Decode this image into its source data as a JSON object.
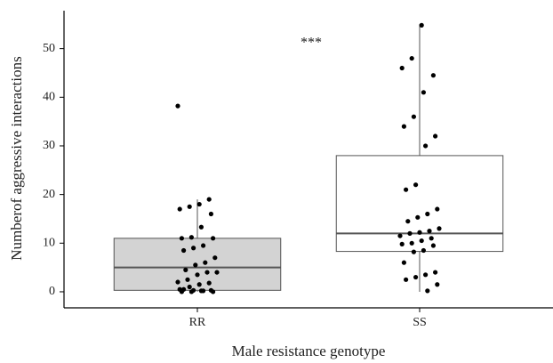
{
  "chart_data": {
    "type": "box",
    "x_label": "Male resistance genotype",
    "y_label": "Numberof aggressive interactions",
    "annotation": "***",
    "categories": [
      "RR",
      "SS"
    ],
    "boxes": [
      {
        "min": 0,
        "q1": 0.3,
        "median": 5,
        "q3": 11,
        "max": 19,
        "fill": "#d3d3d3"
      },
      {
        "min": 0,
        "q1": 8.3,
        "median": 12,
        "q3": 28,
        "max": 55,
        "fill": "#ffffff"
      }
    ],
    "points": [
      [
        38.2,
        19,
        18,
        17.5,
        17,
        16,
        13.3,
        11.2,
        11,
        11,
        9.5,
        9,
        8.5,
        7,
        6,
        5.5,
        4.5,
        4,
        4,
        3.5,
        2.5,
        2,
        1.8,
        1.5,
        1,
        0.5,
        0.3,
        0.2,
        0,
        0,
        0,
        0.2,
        0.3,
        0.5
      ],
      [
        54.8,
        48,
        46,
        44.5,
        41,
        36,
        34,
        32,
        30,
        22,
        21,
        17,
        16,
        15.3,
        14.5,
        13,
        12.5,
        12.2,
        12,
        11.5,
        11,
        10.5,
        10,
        9.8,
        9.5,
        8.5,
        8.2,
        6,
        4,
        3.5,
        3,
        2.5,
        1.5,
        0.2
      ]
    ],
    "point_color": "#000000",
    "median_color": "#555555",
    "ylim": [
      -3.3,
      57.8
    ],
    "yticks": [
      0,
      10,
      20,
      30,
      40,
      50
    ]
  }
}
